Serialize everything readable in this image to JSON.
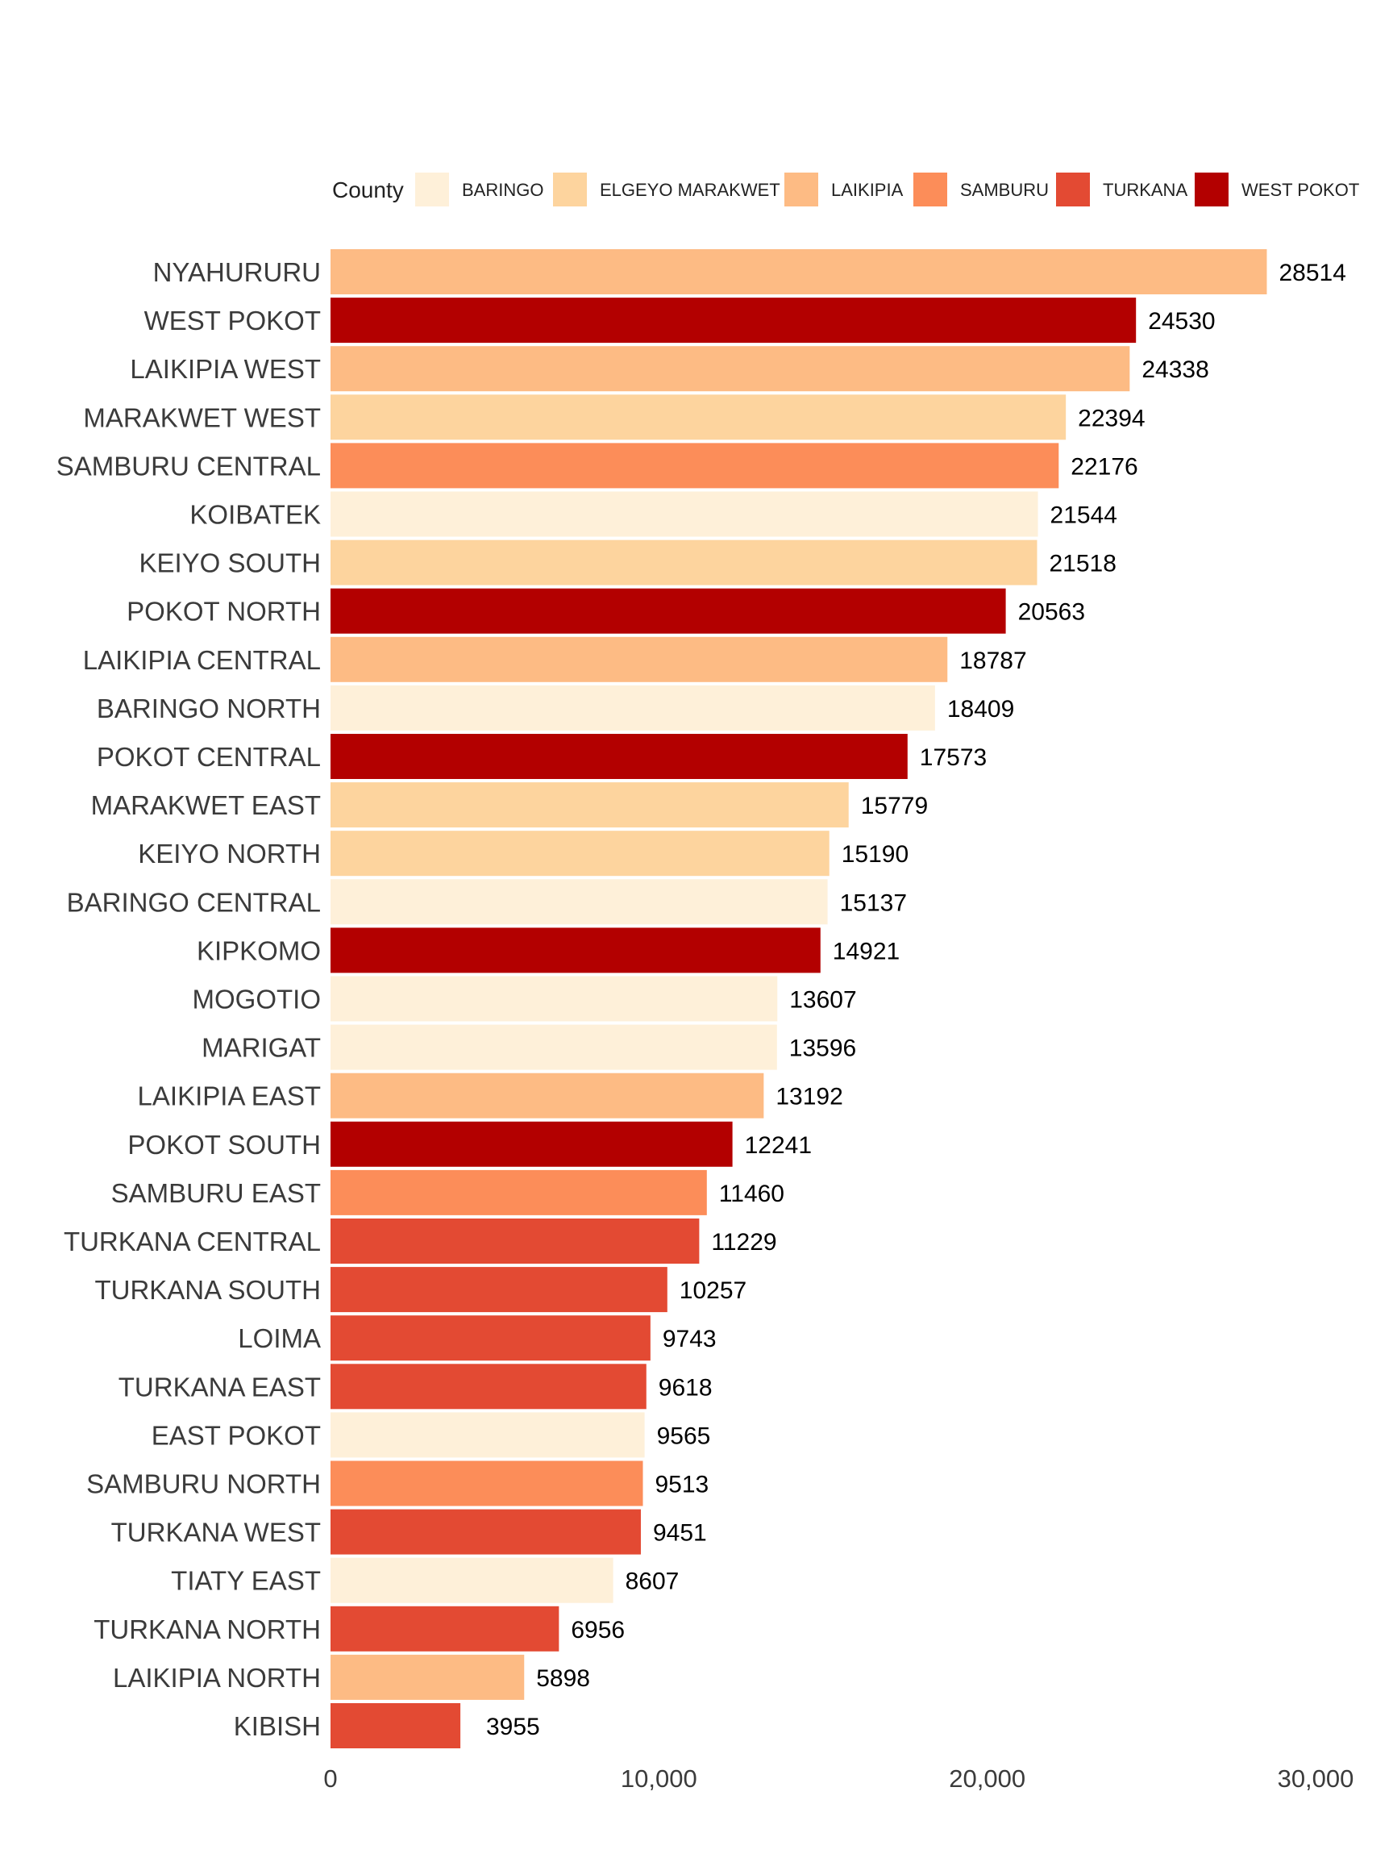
{
  "chart_data": {
    "type": "bar",
    "orientation": "horizontal",
    "title": "",
    "xlabel": "",
    "ylabel": "",
    "xlim": [
      0,
      30000
    ],
    "x_ticks": [
      0,
      10000,
      20000,
      30000
    ],
    "x_tick_labels": [
      "0",
      "10,000",
      "20,000",
      "30,000"
    ],
    "grid": false,
    "legend": {
      "title": "County",
      "placement": "top",
      "entries": [
        {
          "name": "BARINGO",
          "color": "#FEF0D9"
        },
        {
          "name": "ELGEYO MARAKWET",
          "color": "#FDD49E"
        },
        {
          "name": "LAIKIPIA",
          "color": "#FDBB84"
        },
        {
          "name": "SAMBURU",
          "color": "#FC8D59"
        },
        {
          "name": "TURKANA",
          "color": "#E34A33"
        },
        {
          "name": "WEST POKOT",
          "color": "#B30000"
        }
      ]
    },
    "categories": [
      "NYAHURURU",
      "WEST POKOT",
      "LAIKIPIA WEST",
      "MARAKWET WEST",
      "SAMBURU CENTRAL",
      "KOIBATEK",
      "KEIYO SOUTH",
      "POKOT NORTH",
      "LAIKIPIA CENTRAL",
      "BARINGO NORTH",
      "POKOT CENTRAL",
      "MARAKWET EAST",
      "KEIYO NORTH",
      "BARINGO CENTRAL",
      "KIPKOMO",
      "MOGOTIO",
      "MARIGAT",
      "LAIKIPIA EAST",
      "POKOT SOUTH",
      "SAMBURU EAST",
      "TURKANA CENTRAL",
      "TURKANA SOUTH",
      "LOIMA",
      "TURKANA EAST",
      "EAST POKOT",
      "SAMBURU NORTH",
      "TURKANA WEST",
      "TIATY EAST",
      "TURKANA NORTH",
      "LAIKIPIA NORTH",
      "KIBISH"
    ],
    "values": [
      28514,
      24530,
      24338,
      22394,
      22176,
      21544,
      21518,
      20563,
      18787,
      18409,
      17573,
      15779,
      15190,
      15137,
      14921,
      13607,
      13596,
      13192,
      12241,
      11460,
      11229,
      10257,
      9743,
      9618,
      9565,
      9513,
      9451,
      8607,
      6956,
      5898,
      3955
    ],
    "county": [
      "LAIKIPIA",
      "WEST POKOT",
      "LAIKIPIA",
      "ELGEYO MARAKWET",
      "SAMBURU",
      "BARINGO",
      "ELGEYO MARAKWET",
      "WEST POKOT",
      "LAIKIPIA",
      "BARINGO",
      "WEST POKOT",
      "ELGEYO MARAKWET",
      "ELGEYO MARAKWET",
      "BARINGO",
      "WEST POKOT",
      "BARINGO",
      "BARINGO",
      "LAIKIPIA",
      "WEST POKOT",
      "SAMBURU",
      "TURKANA",
      "TURKANA",
      "TURKANA",
      "TURKANA",
      "BARINGO",
      "SAMBURU",
      "TURKANA",
      "BARINGO",
      "TURKANA",
      "LAIKIPIA",
      "TURKANA"
    ]
  }
}
